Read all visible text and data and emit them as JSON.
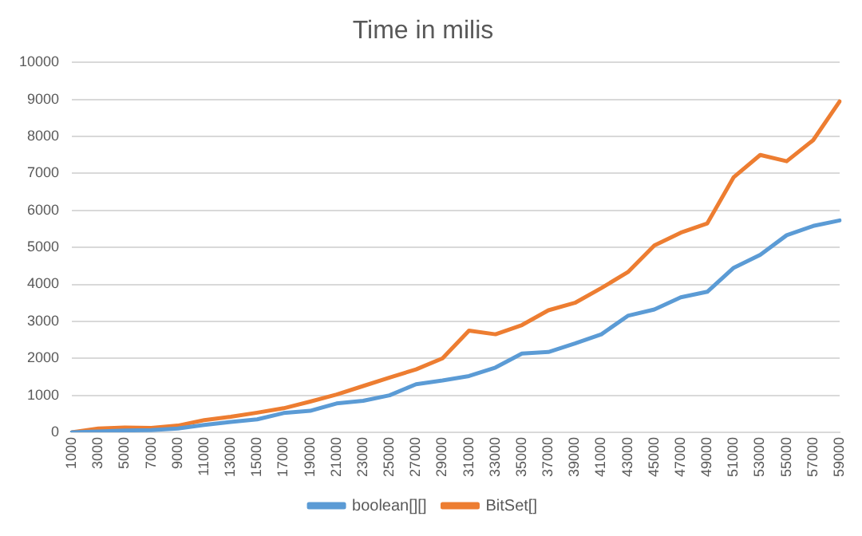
{
  "chart_data": {
    "type": "line",
    "title": "Time in milis",
    "categories": [
      "1000",
      "3000",
      "5000",
      "7000",
      "9000",
      "11000",
      "13000",
      "15000",
      "17000",
      "19000",
      "21000",
      "23000",
      "25000",
      "27000",
      "29000",
      "31000",
      "33000",
      "35000",
      "37000",
      "39000",
      "41000",
      "43000",
      "45000",
      "47000",
      "49000",
      "51000",
      "53000",
      "55000",
      "57000",
      "59000"
    ],
    "series": [
      {
        "name": "boolean[][]",
        "color": "#5b9bd5",
        "values": [
          0,
          20,
          50,
          60,
          100,
          200,
          280,
          350,
          520,
          580,
          780,
          850,
          1000,
          1300,
          1400,
          1520,
          1750,
          2130,
          2170,
          2400,
          2650,
          3150,
          3320,
          3650,
          3800,
          4450,
          4800,
          5330,
          5580,
          5730
        ]
      },
      {
        "name": "BitSet[]",
        "color": "#ed7d31",
        "values": [
          0,
          100,
          130,
          120,
          180,
          330,
          420,
          530,
          650,
          830,
          1020,
          1250,
          1480,
          1700,
          2000,
          2750,
          2650,
          2900,
          3300,
          3500,
          3900,
          4330,
          5050,
          5400,
          5650,
          6900,
          7500,
          7330,
          7900,
          8950
        ]
      }
    ],
    "ylim": [
      0,
      10000
    ],
    "yticks": [
      0,
      1000,
      2000,
      3000,
      4000,
      5000,
      6000,
      7000,
      8000,
      9000,
      10000
    ],
    "grid": "y",
    "legend": "bottom",
    "marker": "none",
    "line_style": "solid"
  }
}
